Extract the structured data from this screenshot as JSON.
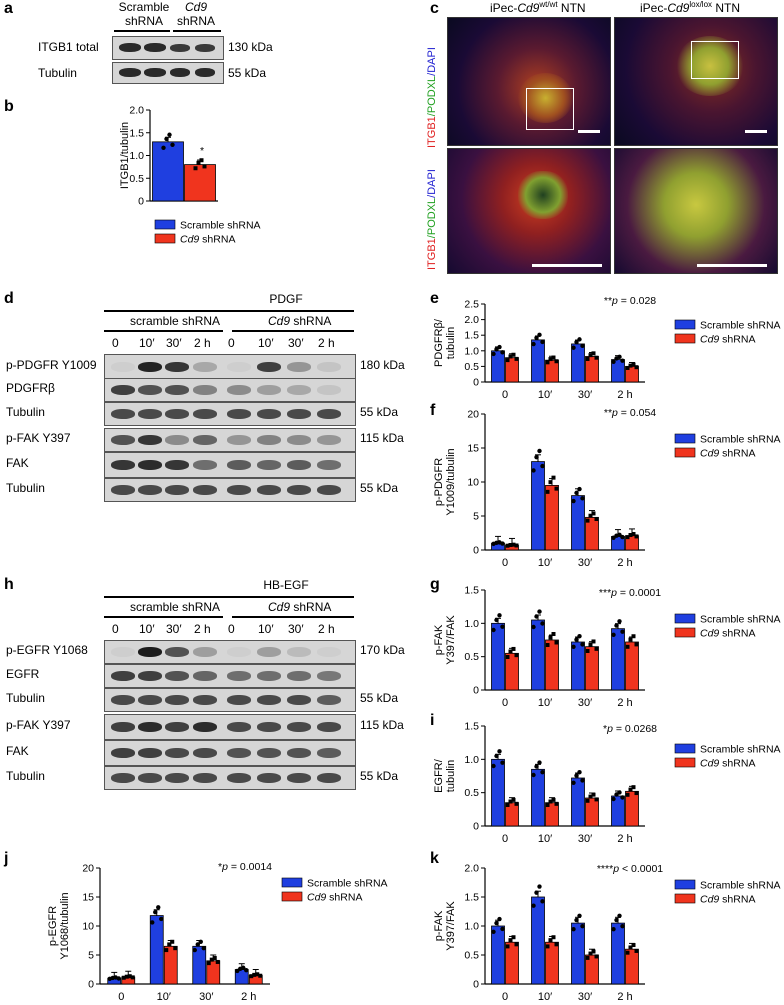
{
  "colors": {
    "scramble": "#1f3fe0",
    "cd9": "#f0341e",
    "axis": "#000000"
  },
  "panel_labels": {
    "a": "a",
    "b": "b",
    "c": "c",
    "d": "d",
    "e": "e",
    "f": "f",
    "g": "g",
    "h": "h",
    "i": "i",
    "j": "j",
    "k": "k"
  },
  "panel_a": {
    "col1": "Scramble\nshRNA",
    "col1_l1": "Scramble",
    "col1_l2": "shRNA",
    "col2_l1": "Cd9",
    "col2_l2": "shRNA",
    "rows": [
      {
        "label": "ITGB1 total",
        "kda": "130 kDa"
      },
      {
        "label": "Tubulin",
        "kda": "55 kDa"
      }
    ]
  },
  "panel_c": {
    "title_left_pre": "iPec-",
    "title_left_gene": "Cd9",
    "title_left_sup": "wt/wt",
    "title_left_post": " NTN",
    "title_right_pre": "iPec-",
    "title_right_gene": "Cd9",
    "title_right_sup": "lox/lox",
    "title_right_post": " NTN",
    "stain_itgb1": "ITGB1",
    "stain_podxl": "/PODXL",
    "stain_dapi": "/DAPI"
  },
  "panel_d": {
    "treatment": "PDGF",
    "group1": "scramble shRNA",
    "group2_gene": "Cd9",
    "group2_rest": " shRNA",
    "times": [
      "0",
      "10′",
      "30′",
      "2 h",
      "0",
      "10′",
      "30′",
      "2 h"
    ],
    "rows": [
      {
        "label": "p-PDGFR Y1009",
        "kda": "180 kDa"
      },
      {
        "label": "PDGFRβ",
        "kda": ""
      },
      {
        "label": "Tubulin",
        "kda": "55 kDa"
      },
      {
        "label": "p-FAK Y397",
        "kda": "115 kDa"
      },
      {
        "label": "FAK",
        "kda": ""
      },
      {
        "label": "Tubulin",
        "kda": "55 kDa"
      }
    ]
  },
  "panel_h": {
    "treatment": "HB-EGF",
    "group1": "scramble shRNA",
    "group2_gene": "Cd9",
    "group2_rest": " shRNA",
    "times": [
      "0",
      "10′",
      "30′",
      "2 h",
      "0",
      "10′",
      "30′",
      "2 h"
    ],
    "rows": [
      {
        "label": "p-EGFR Y1068",
        "kda": "170 kDa"
      },
      {
        "label": "EGFR",
        "kda": ""
      },
      {
        "label": "Tubulin",
        "kda": "55 kDa"
      },
      {
        "label": "p-FAK Y397",
        "kda": "115 kDa"
      },
      {
        "label": "FAK",
        "kda": ""
      },
      {
        "label": "Tubulin",
        "kda": "55 kDa"
      }
    ]
  },
  "legend": {
    "scramble": "Scramble shRNA",
    "cd9_gene": "Cd9",
    "cd9_rest": " shRNA"
  },
  "chart_data": [
    {
      "id": "b",
      "type": "bar",
      "ylabel": "ITGB1/tubulin",
      "ylim": [
        0,
        2.0
      ],
      "yticks": [
        "0",
        "0.5",
        "1.0",
        "1.5",
        "2.0"
      ],
      "categories": [
        ""
      ],
      "series": [
        {
          "name": "Scramble shRNA",
          "values": [
            1.3
          ]
        },
        {
          "name": "Cd9 shRNA",
          "values": [
            0.8
          ]
        }
      ],
      "annotation": "*"
    },
    {
      "id": "e",
      "type": "bar",
      "ylabel": "PDGFRβ/\ntubulin",
      "ylim": [
        0,
        2.5
      ],
      "yticks": [
        "0",
        "0.5",
        "1.0",
        "1.5",
        "2.0",
        "2.5"
      ],
      "categories": [
        "0",
        "10′",
        "30′",
        "2 h"
      ],
      "series": [
        {
          "name": "Scramble shRNA",
          "values": [
            1.0,
            1.35,
            1.22,
            0.72
          ]
        },
        {
          "name": "Cd9 shRNA",
          "values": [
            0.78,
            0.7,
            0.82,
            0.5
          ]
        }
      ],
      "annotation": "**p = 0.028"
    },
    {
      "id": "f",
      "type": "bar",
      "ylabel": "p-PDGFR\nY1009/tubulin",
      "ylim": [
        0,
        20
      ],
      "yticks": [
        "0",
        "5",
        "10",
        "15",
        "20"
      ],
      "categories": [
        "0",
        "10′",
        "30′",
        "2 h"
      ],
      "series": [
        {
          "name": "Scramble shRNA",
          "values": [
            1.0,
            13.0,
            8.0,
            2.0
          ]
        },
        {
          "name": "Cd9 shRNA",
          "values": [
            0.7,
            9.5,
            4.8,
            2.1
          ]
        }
      ],
      "annotation": "**p = 0.054"
    },
    {
      "id": "g",
      "type": "bar",
      "ylabel": "p-FAK\nY397/FAK",
      "ylim": [
        0,
        1.5
      ],
      "yticks": [
        "0",
        "0.5",
        "1.0",
        "1.5"
      ],
      "categories": [
        "0",
        "10′",
        "30′",
        "2 h"
      ],
      "series": [
        {
          "name": "Scramble shRNA",
          "values": [
            1.0,
            1.05,
            0.72,
            0.92
          ]
        },
        {
          "name": "Cd9 shRNA",
          "values": [
            0.55,
            0.75,
            0.65,
            0.72
          ]
        }
      ],
      "annotation": "***p = 0.0001"
    },
    {
      "id": "i",
      "type": "bar",
      "ylabel": "EGFR/\ntubulin",
      "ylim": [
        0,
        1.5
      ],
      "yticks": [
        "0",
        "0.5",
        "1.0",
        "1.5"
      ],
      "categories": [
        "0",
        "10′",
        "30′",
        "2 h"
      ],
      "series": [
        {
          "name": "Scramble shRNA",
          "values": [
            1.0,
            0.85,
            0.72,
            0.45
          ]
        },
        {
          "name": "Cd9 shRNA",
          "values": [
            0.35,
            0.35,
            0.42,
            0.52
          ]
        }
      ],
      "annotation": "*p = 0.0268"
    },
    {
      "id": "j",
      "type": "bar",
      "ylabel": "p-EGFR\nY1068/tubulin",
      "ylim": [
        0,
        20
      ],
      "yticks": [
        "0",
        "5",
        "10",
        "15",
        "20"
      ],
      "categories": [
        "0",
        "10′",
        "30′",
        "2 h"
      ],
      "series": [
        {
          "name": "Scramble shRNA",
          "values": [
            1.0,
            11.8,
            6.5,
            2.5
          ]
        },
        {
          "name": "Cd9 shRNA",
          "values": [
            1.2,
            6.5,
            4.0,
            1.5
          ]
        }
      ],
      "annotation": "*p = 0.0014"
    },
    {
      "id": "k",
      "type": "bar",
      "ylabel": "p-FAK\nY397/FAK",
      "ylim": [
        0,
        2.0
      ],
      "yticks": [
        "0",
        "0.5",
        "1.0",
        "1.5",
        "2.0"
      ],
      "categories": [
        "0",
        "10′",
        "30′",
        "2 h"
      ],
      "series": [
        {
          "name": "Scramble shRNA",
          "values": [
            1.0,
            1.5,
            1.05,
            1.05
          ]
        },
        {
          "name": "Cd9 shRNA",
          "values": [
            0.72,
            0.72,
            0.5,
            0.6
          ]
        }
      ],
      "annotation": "****p < 0.0001"
    }
  ]
}
